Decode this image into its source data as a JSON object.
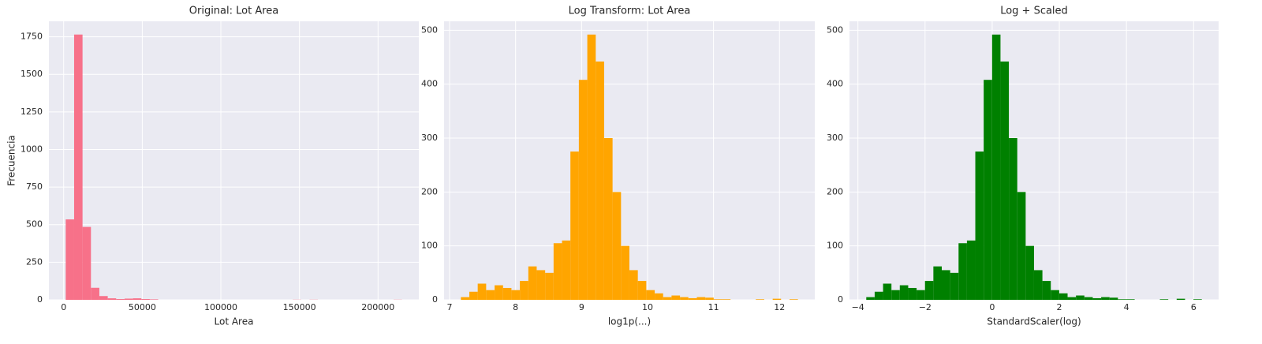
{
  "chart_data": [
    {
      "type": "histogram",
      "title": "Original: Lot Area",
      "xlabel": "Lot Area",
      "ylabel": "Frecuencia",
      "color": "#f77189",
      "grid": true,
      "bins": [
        1300,
        6649,
        11997,
        17346,
        22694,
        28043,
        33392,
        38740,
        44089,
        49437,
        54786,
        60135,
        65483,
        70832,
        76180,
        81529,
        86878,
        92226,
        97575,
        102923,
        108272,
        113621,
        118969,
        124318,
        129666,
        135015,
        140364,
        145712,
        151061,
        156409,
        161758,
        167107,
        172455,
        177804,
        183152,
        188501,
        193850,
        199198,
        204547,
        209895,
        215245
      ],
      "values": [
        535,
        1765,
        485,
        80,
        25,
        10,
        5,
        8,
        10,
        5,
        3,
        0,
        0,
        0,
        0,
        0,
        0,
        0,
        0,
        0,
        0,
        0,
        0,
        0,
        0,
        0,
        0,
        1,
        0,
        1,
        0,
        0,
        0,
        0,
        0,
        0,
        0,
        0,
        0,
        1
      ],
      "xlim": [
        -9397,
        225942
      ],
      "ylim": [
        0,
        1853
      ],
      "xticks": [
        0,
        50000,
        100000,
        150000,
        200000
      ],
      "yticks": [
        0,
        250,
        500,
        750,
        1000,
        1250,
        1500,
        1750
      ]
    },
    {
      "type": "histogram",
      "title": "Log Transform: Lot Area",
      "xlabel": "log1p(...)",
      "color": "#ffa500",
      "grid": true,
      "bins": [
        7.171,
        7.299,
        7.426,
        7.554,
        7.682,
        7.81,
        7.937,
        8.065,
        8.193,
        8.32,
        8.448,
        8.576,
        8.704,
        8.831,
        8.959,
        9.087,
        9.215,
        9.342,
        9.47,
        9.598,
        9.725,
        9.853,
        9.981,
        10.109,
        10.236,
        10.364,
        10.492,
        10.619,
        10.747,
        10.875,
        11.003,
        11.13,
        11.258,
        11.386,
        11.513,
        11.641,
        11.769,
        11.897,
        12.024,
        12.152,
        12.28
      ],
      "values": [
        5,
        15,
        30,
        18,
        27,
        22,
        18,
        35,
        62,
        55,
        50,
        105,
        110,
        275,
        408,
        492,
        442,
        300,
        200,
        100,
        55,
        35,
        18,
        12,
        5,
        8,
        5,
        3,
        5,
        4,
        1,
        1,
        0,
        0,
        0,
        1,
        0,
        2,
        0,
        1
      ],
      "xlim": [
        6.916,
        12.535
      ],
      "ylim": [
        0,
        516.6
      ],
      "xticks": [
        7,
        8,
        9,
        10,
        11,
        12
      ],
      "yticks": [
        0,
        100,
        200,
        300,
        400,
        500
      ]
    },
    {
      "type": "histogram",
      "title": "Log + Scaled",
      "xlabel": "StandardScaler(log)",
      "color": "#008000",
      "grid": true,
      "bins": [
        -3.751,
        -3.501,
        -3.251,
        -3.001,
        -2.752,
        -2.502,
        -2.252,
        -2.002,
        -1.752,
        -1.502,
        -1.252,
        -1.002,
        -0.752,
        -0.503,
        -0.253,
        -0.003,
        0.247,
        0.497,
        0.747,
        0.997,
        1.246,
        1.496,
        1.746,
        1.996,
        2.246,
        2.496,
        2.746,
        2.996,
        3.246,
        3.496,
        3.745,
        3.995,
        4.245,
        4.495,
        4.745,
        4.995,
        5.245,
        5.495,
        5.745,
        5.995,
        6.245
      ],
      "values": [
        5,
        15,
        30,
        18,
        27,
        22,
        18,
        35,
        62,
        55,
        50,
        105,
        110,
        275,
        408,
        492,
        442,
        300,
        200,
        100,
        55,
        35,
        18,
        12,
        5,
        8,
        5,
        3,
        5,
        4,
        1,
        1,
        0,
        0,
        0,
        1,
        0,
        2,
        0,
        1
      ],
      "xlim": [
        -4.251,
        6.745
      ],
      "ylim": [
        0,
        516.6
      ],
      "xticks": [
        {
          "value": -4,
          "label": "−4"
        },
        {
          "value": -2,
          "label": "−2"
        },
        0,
        2,
        4,
        6
      ],
      "yticks": [
        0,
        100,
        200,
        300,
        400,
        500
      ]
    }
  ]
}
